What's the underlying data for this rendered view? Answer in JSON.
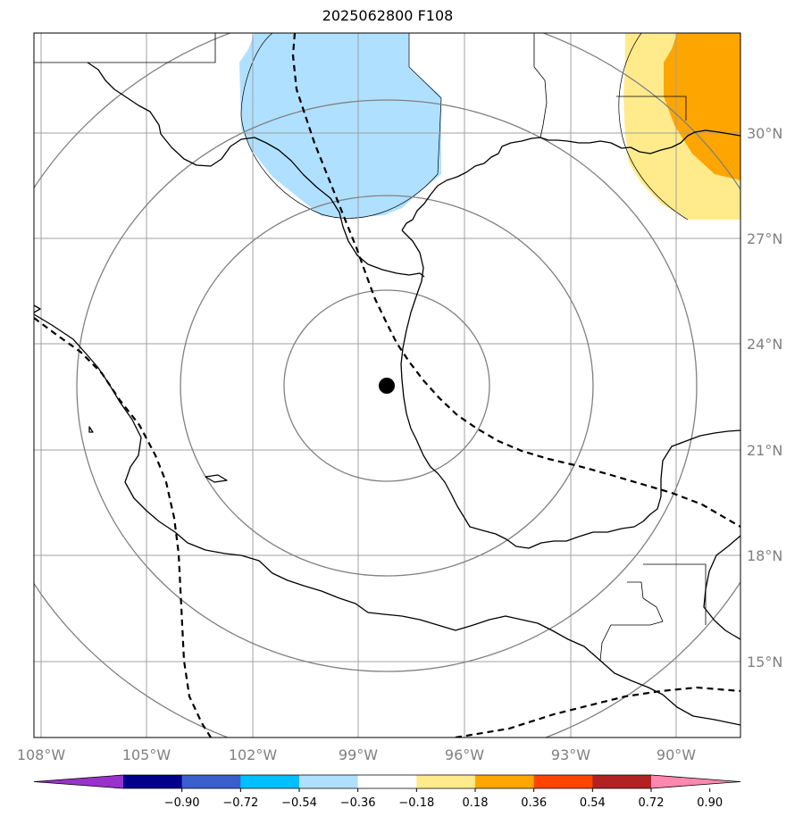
{
  "title": "2025062800 F108",
  "lon_labels": [
    "108°W",
    "105°W",
    "102°W",
    "99°W",
    "96°W",
    "93°W",
    "90°W"
  ],
  "lat_labels": [
    "30°N",
    "27°N",
    "24°N",
    "21°N",
    "18°N",
    "15°N"
  ],
  "lon_values": [
    -108,
    -105,
    -102,
    -99,
    -96,
    -93,
    -90
  ],
  "lat_values": [
    30,
    27,
    24,
    21,
    18,
    15
  ],
  "extent": {
    "lon_min": -108.2,
    "lon_max": -88.1,
    "lat_min": 13.0,
    "lat_max": 32.8
  },
  "storm_center": {
    "lon": -98.2,
    "lat": 22.8
  },
  "colorbar": {
    "ticks": [
      "−0.90",
      "−0.72",
      "−0.54",
      "−0.36",
      "−0.18",
      "0.18",
      "0.36",
      "0.54",
      "0.72",
      "0.90"
    ],
    "colors": [
      "#9932cc",
      "#00008b",
      "#3a5fcd",
      "#00bfff",
      "#b0e0ff",
      "#ffffff",
      "#ffeb8c",
      "#ffa500",
      "#ff4500",
      "#b22222",
      "#ff88b0"
    ]
  },
  "colors": {
    "coast": "#000000",
    "grid": "#a0a0a0",
    "range_rings": "#808080",
    "negative_field": "#b0e0ff",
    "positive_light": "#ffeb8c",
    "positive_mid": "#ffa500"
  }
}
